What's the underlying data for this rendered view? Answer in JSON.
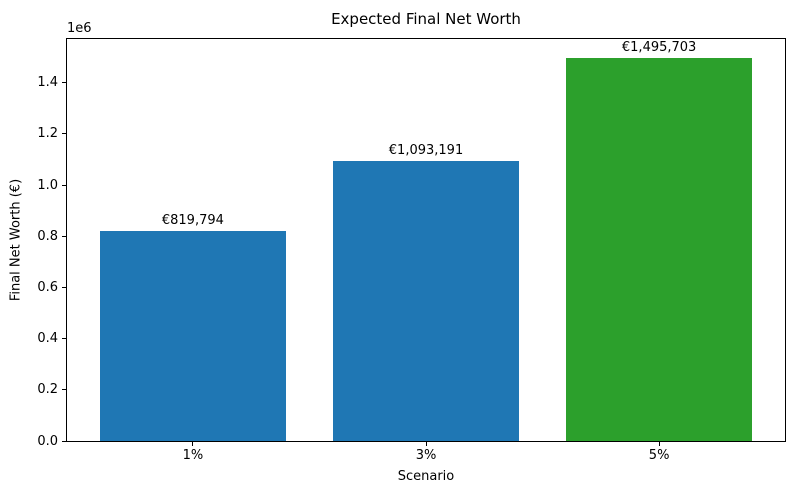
{
  "chart_data": {
    "type": "bar",
    "title": "Expected Final Net Worth",
    "xlabel": "Scenario",
    "ylabel": "Final Net Worth (€)",
    "y_offset_label": "1e6",
    "categories": [
      "1%",
      "3%",
      "5%"
    ],
    "values": [
      819794,
      1093191,
      1495703
    ],
    "bar_labels": [
      "€819,794",
      "€1,093,191",
      "€1,495,703"
    ],
    "bar_colors": [
      "#1f77b4",
      "#1f77b4",
      "#2ca02c"
    ],
    "ylim": [
      0,
      1570488
    ],
    "yticks": [
      0,
      200000,
      400000,
      600000,
      800000,
      1000000,
      1200000,
      1400000
    ],
    "ytick_labels": [
      "0.0",
      "0.2",
      "0.4",
      "0.6",
      "0.8",
      "1.0",
      "1.2",
      "1.4"
    ],
    "xlim": [
      -0.54,
      2.54
    ],
    "bar_width": 0.8,
    "grid": false,
    "legend": false,
    "colors": {
      "spine": "#000000",
      "text": "#000000",
      "background": "#ffffff"
    }
  }
}
